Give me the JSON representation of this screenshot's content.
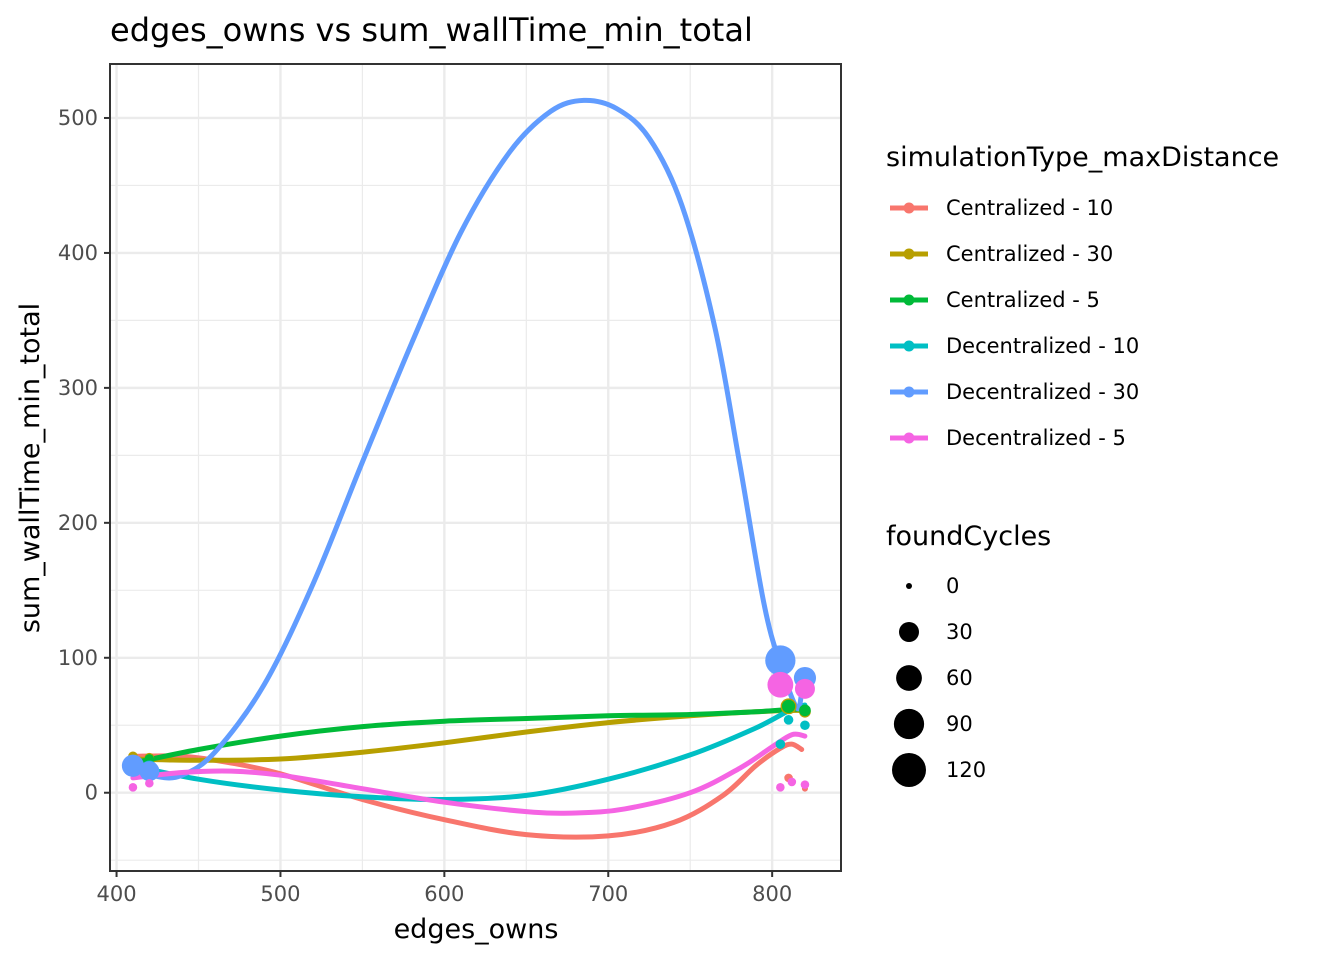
{
  "chart_data": {
    "type": "scatter",
    "title": "edges_owns  vs  sum_wallTime_min_total",
    "xlabel": "edges_owns",
    "ylabel": "sum_wallTime_min_total",
    "xlim": [
      396,
      842
    ],
    "ylim": [
      -58,
      540
    ],
    "x_ticks": [
      400,
      500,
      600,
      700,
      800
    ],
    "y_ticks": [
      0,
      100,
      200,
      300,
      400,
      500
    ],
    "grid": true,
    "legend_position": "right",
    "color_legend_title": "simulationType_maxDistance",
    "size_legend_title": "foundCycles",
    "size_legend": [
      {
        "label": "0",
        "value": 0
      },
      {
        "label": "30",
        "value": 30
      },
      {
        "label": "60",
        "value": 60
      },
      {
        "label": "90",
        "value": 90
      },
      {
        "label": "120",
        "value": 120
      }
    ],
    "series": [
      {
        "name": "Centralized - 10",
        "color": "#F8766D",
        "points": [
          [
            410,
            25,
            0
          ],
          [
            420,
            22,
            0
          ],
          [
            810,
            11,
            1
          ],
          [
            820,
            3,
            0
          ]
        ],
        "smooth": [
          [
            410,
            27
          ],
          [
            440,
            27
          ],
          [
            470,
            22
          ],
          [
            500,
            14
          ],
          [
            550,
            -5
          ],
          [
            600,
            -20
          ],
          [
            650,
            -31
          ],
          [
            700,
            -32
          ],
          [
            740,
            -22
          ],
          [
            770,
            -2
          ],
          [
            790,
            20
          ],
          [
            805,
            33
          ],
          [
            812,
            36
          ],
          [
            818,
            32
          ]
        ]
      },
      {
        "name": "Centralized - 30",
        "color": "#B79F00",
        "points": [
          [
            410,
            27,
            2
          ],
          [
            420,
            26,
            2
          ],
          [
            810,
            64,
            15
          ],
          [
            820,
            60,
            5
          ]
        ],
        "smooth": [
          [
            410,
            25
          ],
          [
            450,
            24
          ],
          [
            500,
            25
          ],
          [
            550,
            30
          ],
          [
            600,
            37
          ],
          [
            650,
            45
          ],
          [
            700,
            52
          ],
          [
            750,
            57
          ],
          [
            790,
            60
          ],
          [
            815,
            61
          ],
          [
            820,
            60
          ]
        ]
      },
      {
        "name": "Centralized - 5",
        "color": "#00BA38",
        "points": [
          [
            410,
            22,
            2
          ],
          [
            420,
            25,
            2
          ],
          [
            810,
            64,
            8
          ],
          [
            820,
            61,
            5
          ]
        ],
        "smooth": [
          [
            410,
            22
          ],
          [
            450,
            32
          ],
          [
            500,
            42
          ],
          [
            550,
            49
          ],
          [
            600,
            53
          ],
          [
            650,
            55
          ],
          [
            700,
            57
          ],
          [
            750,
            58
          ],
          [
            790,
            60
          ],
          [
            815,
            62
          ],
          [
            820,
            61
          ]
        ]
      },
      {
        "name": "Decentralized - 10",
        "color": "#00BFC4",
        "points": [
          [
            410,
            20,
            30
          ],
          [
            420,
            18,
            15
          ],
          [
            805,
            36,
            2
          ],
          [
            810,
            54,
            2
          ],
          [
            820,
            50,
            2
          ]
        ],
        "smooth": [
          [
            410,
            20
          ],
          [
            450,
            10
          ],
          [
            500,
            2
          ],
          [
            550,
            -3
          ],
          [
            600,
            -5
          ],
          [
            650,
            -2
          ],
          [
            700,
            10
          ],
          [
            750,
            28
          ],
          [
            790,
            48
          ],
          [
            812,
            62
          ],
          [
            820,
            65
          ]
        ]
      },
      {
        "name": "Decentralized - 30",
        "color": "#619CFF",
        "points": [
          [
            410,
            20,
            40
          ],
          [
            420,
            16,
            30
          ],
          [
            805,
            98,
            90
          ],
          [
            820,
            85,
            40
          ]
        ],
        "smooth": [
          [
            410,
            20
          ],
          [
            425,
            12
          ],
          [
            440,
            13
          ],
          [
            460,
            30
          ],
          [
            490,
            80
          ],
          [
            520,
            155
          ],
          [
            550,
            245
          ],
          [
            580,
            333
          ],
          [
            610,
            415
          ],
          [
            640,
            475
          ],
          [
            665,
            505
          ],
          [
            685,
            513
          ],
          [
            705,
            507
          ],
          [
            725,
            485
          ],
          [
            745,
            435
          ],
          [
            765,
            345
          ],
          [
            780,
            245
          ],
          [
            795,
            140
          ],
          [
            805,
            95
          ],
          [
            815,
            63
          ],
          [
            818,
            73
          ],
          [
            821,
            85
          ]
        ]
      },
      {
        "name": "Decentralized - 5",
        "color": "#F564E3",
        "points": [
          [
            410,
            4,
            1
          ],
          [
            420,
            7,
            1
          ],
          [
            805,
            80,
            60
          ],
          [
            820,
            77,
            30
          ],
          [
            805,
            4,
            1
          ],
          [
            812,
            8,
            1
          ],
          [
            820,
            6,
            1
          ]
        ],
        "smooth": [
          [
            410,
            11
          ],
          [
            440,
            15
          ],
          [
            470,
            16
          ],
          [
            500,
            13
          ],
          [
            550,
            3
          ],
          [
            600,
            -7
          ],
          [
            650,
            -14
          ],
          [
            680,
            -15
          ],
          [
            710,
            -12
          ],
          [
            750,
            0
          ],
          [
            780,
            18
          ],
          [
            800,
            34
          ],
          [
            812,
            43
          ],
          [
            820,
            42
          ]
        ]
      }
    ]
  }
}
